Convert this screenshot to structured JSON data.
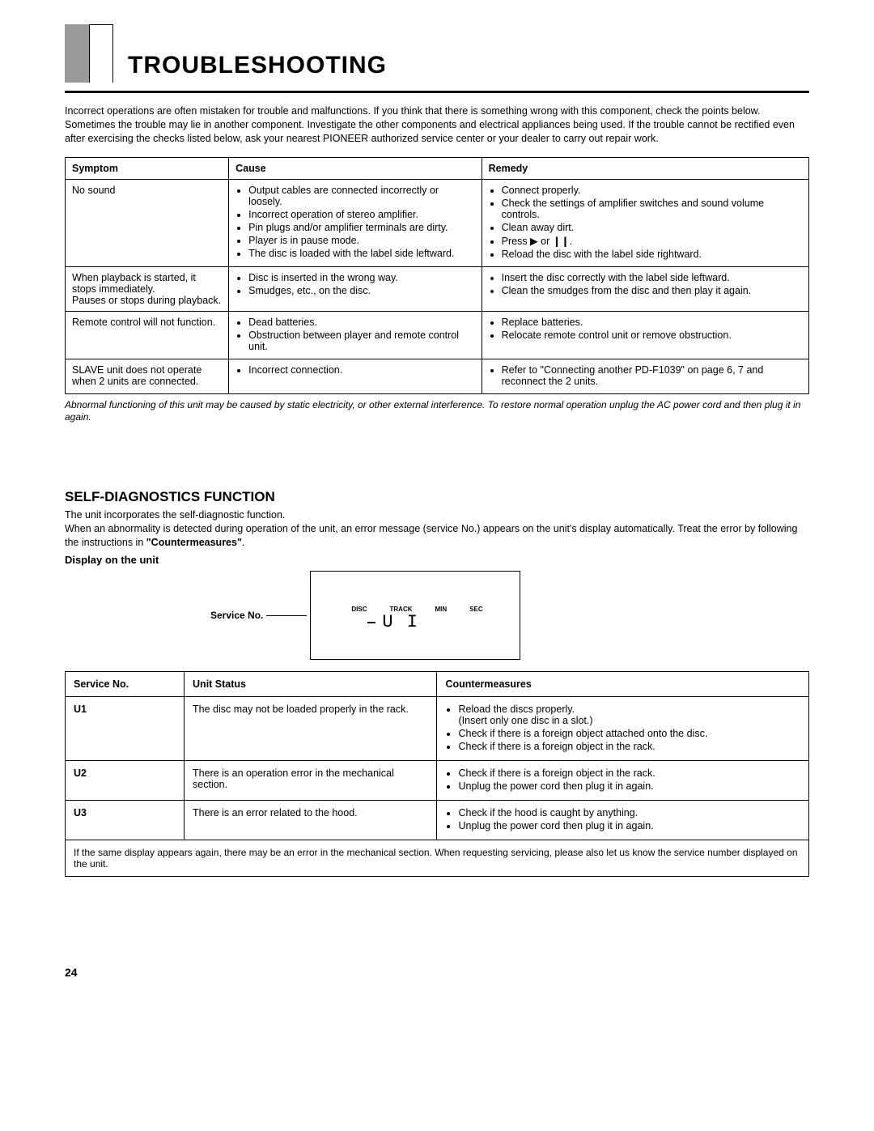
{
  "title": "TROUBLESHOOTING",
  "intro": "Incorrect operations are often mistaken for trouble and malfunctions. If you think that there is something wrong with this component, check the points below. Sometimes the trouble may lie in another component. Investigate the other components and electrical appliances being used. If the trouble cannot be rectified even after exercising the checks listed below, ask your nearest PIONEER authorized service center or your dealer to carry out repair work.",
  "trouble_headers": {
    "c0": "Symptom",
    "c1": "Cause",
    "c2": "Remedy"
  },
  "rows": [
    {
      "symptom": "No sound",
      "causes": [
        "Output cables are connected incorrectly or loosely.",
        "Incorrect operation of stereo amplifier.",
        "Pin plugs and/or amplifier terminals are dirty.",
        "Player is in pause mode.",
        "The disc is loaded with the label side leftward."
      ],
      "remedies": [
        "Connect properly.",
        "Check the settings of amplifier switches and sound volume controls.",
        "Clean away dirt.",
        "Press ▶ or ❙❙.",
        "Reload the disc with the label side rightward."
      ]
    },
    {
      "symptom": "When playback is started, it stops immediately.\nPauses or stops during playback.",
      "causes": [
        "Disc is inserted in the wrong way.",
        "Smudges, etc., on the disc."
      ],
      "remedies": [
        "Insert the disc correctly with the label side leftward.",
        "Clean the smudges from the disc and then play it again."
      ]
    },
    {
      "symptom": "Remote control will not function.",
      "causes": [
        "Dead batteries.",
        "Obstruction between player and remote control unit."
      ],
      "remedies": [
        "Replace batteries.",
        "Relocate remote control unit or remove obstruction."
      ]
    },
    {
      "symptom": "SLAVE unit does not operate when 2 units are connected.",
      "causes": [
        "Incorrect connection."
      ],
      "remedies": [
        "Refer to \"Connecting another PD-F1039\" on page 6, 7 and reconnect the 2 units."
      ]
    }
  ],
  "footnote": "Abnormal functioning of this unit may be caused by static electricity, or other external interference. To restore normal operation unplug the AC power cord and then plug it in again.",
  "selfdiag_title": "SELF-DIAGNOSTICS FUNCTION",
  "selfdiag_intro": "The unit incorporates the self-diagnostic function.\nWhen an abnormality is detected during operation of the unit, an error message (service No.) appears on the unit's display automatically. Treat the error by following the instructions in \"Countermeasures\".",
  "display_label": "Display on the unit",
  "service_no_label": "Service No.",
  "display_panel": {
    "labels": [
      "DISC",
      "TRACK",
      "MIN",
      "SEC"
    ],
    "segments": "U I"
  },
  "diag_headers": {
    "c0": "Service No.",
    "c1": "Unit Status",
    "c2": "Countermeasures"
  },
  "diag_rows": [
    {
      "svc": "U1",
      "status": "The disc may not be loaded properly in the rack.",
      "cm": [
        "Reload the discs properly.\n(Insert only one disc in a slot.)",
        "Check if there is a foreign object attached onto the disc.",
        "Check if there is a foreign object in the rack."
      ]
    },
    {
      "svc": "U2",
      "status": "There is an operation error in the mechanical section.",
      "cm": [
        "Check if there is a foreign object in the rack.",
        "Unplug the power cord then plug it in again."
      ]
    },
    {
      "svc": "U3",
      "status": "There is an error related to the hood.",
      "cm": [
        "Check if the hood is caught by anything.",
        "Unplug the power cord then plug it in again."
      ]
    }
  ],
  "diag_note": "If the same display appears again, there may be an error in the mechanical section. When requesting servicing, please also let us know the service number displayed on the unit.",
  "page_number": "24"
}
